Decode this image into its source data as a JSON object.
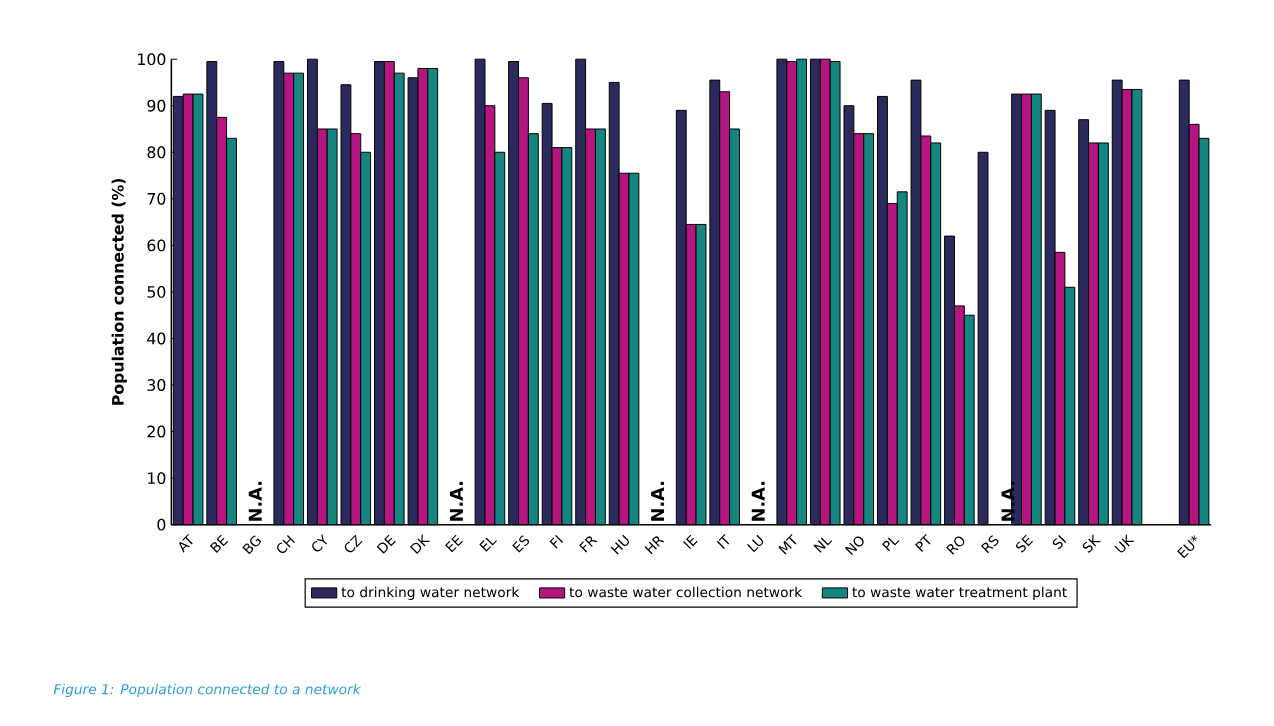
{
  "chart_data": {
    "type": "bar",
    "ylabel": "Population connected (%)",
    "categories": [
      "AT",
      "BE",
      "BG",
      "CH",
      "CY",
      "CZ",
      "DE",
      "DK",
      "EE",
      "EL",
      "ES",
      "FI",
      "FR",
      "HU",
      "HR",
      "IE",
      "IT",
      "LU",
      "MT",
      "NL",
      "NO",
      "PL",
      "PT",
      "RO",
      "RS",
      "SE",
      "SI",
      "SK",
      "UK",
      null,
      "EU*"
    ],
    "series": [
      {
        "name": "to drinking water network",
        "color": "#2b2a5c",
        "values": [
          92,
          99.5,
          null,
          99.5,
          100,
          94.5,
          99.5,
          96,
          null,
          100,
          99.5,
          90.5,
          100,
          95,
          null,
          89,
          95.5,
          null,
          100,
          100,
          90,
          92,
          95.5,
          62,
          80,
          92.5,
          89,
          87,
          95.5,
          null,
          95.5
        ]
      },
      {
        "name": "to waste water collection network",
        "color": "#b5157f",
        "values": [
          92.5,
          87.5,
          null,
          97,
          85,
          84,
          99.5,
          98,
          null,
          90,
          96,
          81,
          85,
          75.5,
          null,
          64.5,
          93,
          null,
          99.5,
          100,
          84,
          69,
          83.5,
          47,
          null,
          92.5,
          58.5,
          82,
          93.5,
          null,
          86
        ]
      },
      {
        "name": "to waste water treatment plant",
        "color": "#14857f",
        "values": [
          92.5,
          83,
          null,
          97,
          85,
          80,
          97,
          98,
          null,
          80,
          84,
          81,
          85,
          75.5,
          null,
          64.5,
          85,
          null,
          100,
          99.5,
          84,
          71.5,
          82,
          45,
          null,
          92.5,
          51,
          82,
          93.5,
          null,
          83
        ]
      }
    ],
    "ylim": [
      0,
      100
    ],
    "yticks": [
      0,
      10,
      20,
      30,
      40,
      50,
      60,
      70,
      80,
      90,
      100
    ],
    "grid": false,
    "legend": "bottom",
    "annotations": [
      "N.A.",
      "N.A.",
      "N.A.",
      "N.A.",
      "N.A.",
      "Figure 1: Population connected to a network"
    ]
  }
}
